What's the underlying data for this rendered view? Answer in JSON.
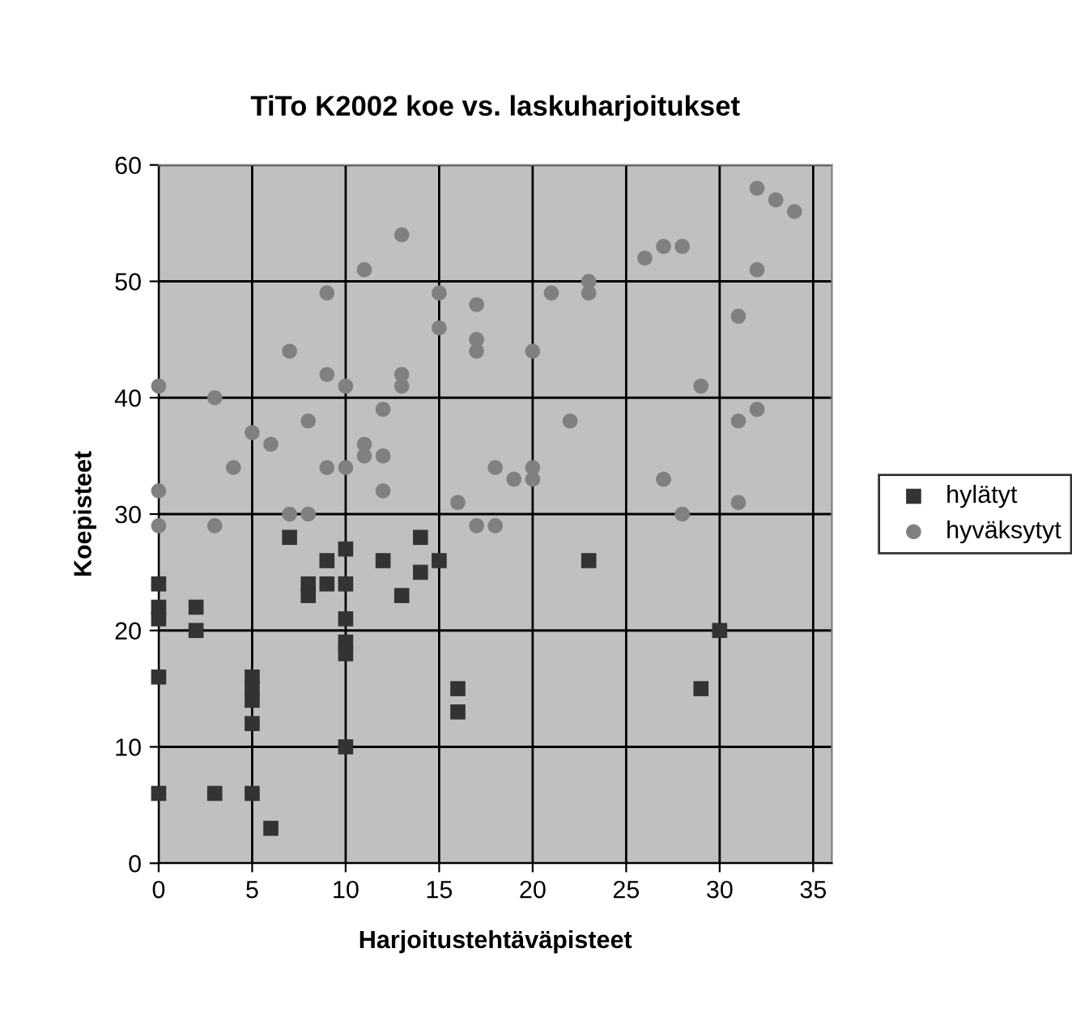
{
  "chart_data": {
    "type": "scatter",
    "title": "TiTo K2002 koe vs. laskuharjoitukset",
    "xlabel": "Harjoitustehtäväpisteet",
    "ylabel": "Koepisteet",
    "xlim": [
      0,
      36
    ],
    "xticks": [
      0,
      5,
      10,
      15,
      20,
      25,
      30,
      35
    ],
    "ylim": [
      0,
      60
    ],
    "yticks": [
      0,
      10,
      20,
      30,
      40,
      50,
      60
    ],
    "grid": true,
    "legend": "right",
    "series": [
      {
        "name": "hylätyt",
        "color": "#333333",
        "marker": "square",
        "x": [
          7,
          10,
          9,
          12,
          0,
          8,
          8,
          9,
          10,
          13,
          0,
          0,
          2,
          2,
          10,
          10,
          10,
          0,
          5,
          5,
          5,
          5,
          10,
          0,
          3,
          5,
          6,
          14,
          15,
          14,
          23,
          16,
          16,
          30,
          29
        ],
        "values": [
          28,
          27,
          26,
          26,
          24,
          24,
          23,
          24,
          24,
          23,
          22,
          21,
          22,
          20,
          21,
          19,
          18,
          16,
          16,
          15,
          14,
          12,
          10,
          6,
          6,
          6,
          3,
          28,
          26,
          25,
          26,
          15,
          13,
          20,
          15
        ]
      },
      {
        "name": "hyväksytyt",
        "color": "#808080",
        "marker": "circle",
        "x": [
          13,
          11,
          9,
          7,
          0,
          9,
          10,
          13,
          13,
          3,
          12,
          8,
          5,
          6,
          11,
          11,
          12,
          4,
          9,
          10,
          0,
          12,
          7,
          8,
          0,
          3,
          15,
          17,
          15,
          17,
          17,
          20,
          21,
          23,
          23,
          26,
          27,
          28,
          22,
          18,
          19,
          20,
          20,
          27,
          16,
          17,
          18,
          28,
          32,
          33,
          34,
          32,
          31,
          29,
          32,
          31,
          31
        ],
        "values": [
          54,
          51,
          49,
          44,
          41,
          42,
          41,
          42,
          41,
          40,
          39,
          38,
          37,
          36,
          36,
          35,
          35,
          34,
          34,
          34,
          32,
          32,
          30,
          30,
          29,
          29,
          49,
          48,
          46,
          45,
          44,
          44,
          49,
          50,
          49,
          52,
          53,
          53,
          38,
          34,
          33,
          34,
          33,
          33,
          31,
          29,
          29,
          30,
          58,
          57,
          56,
          51,
          47,
          41,
          39,
          38,
          31
        ]
      }
    ]
  }
}
